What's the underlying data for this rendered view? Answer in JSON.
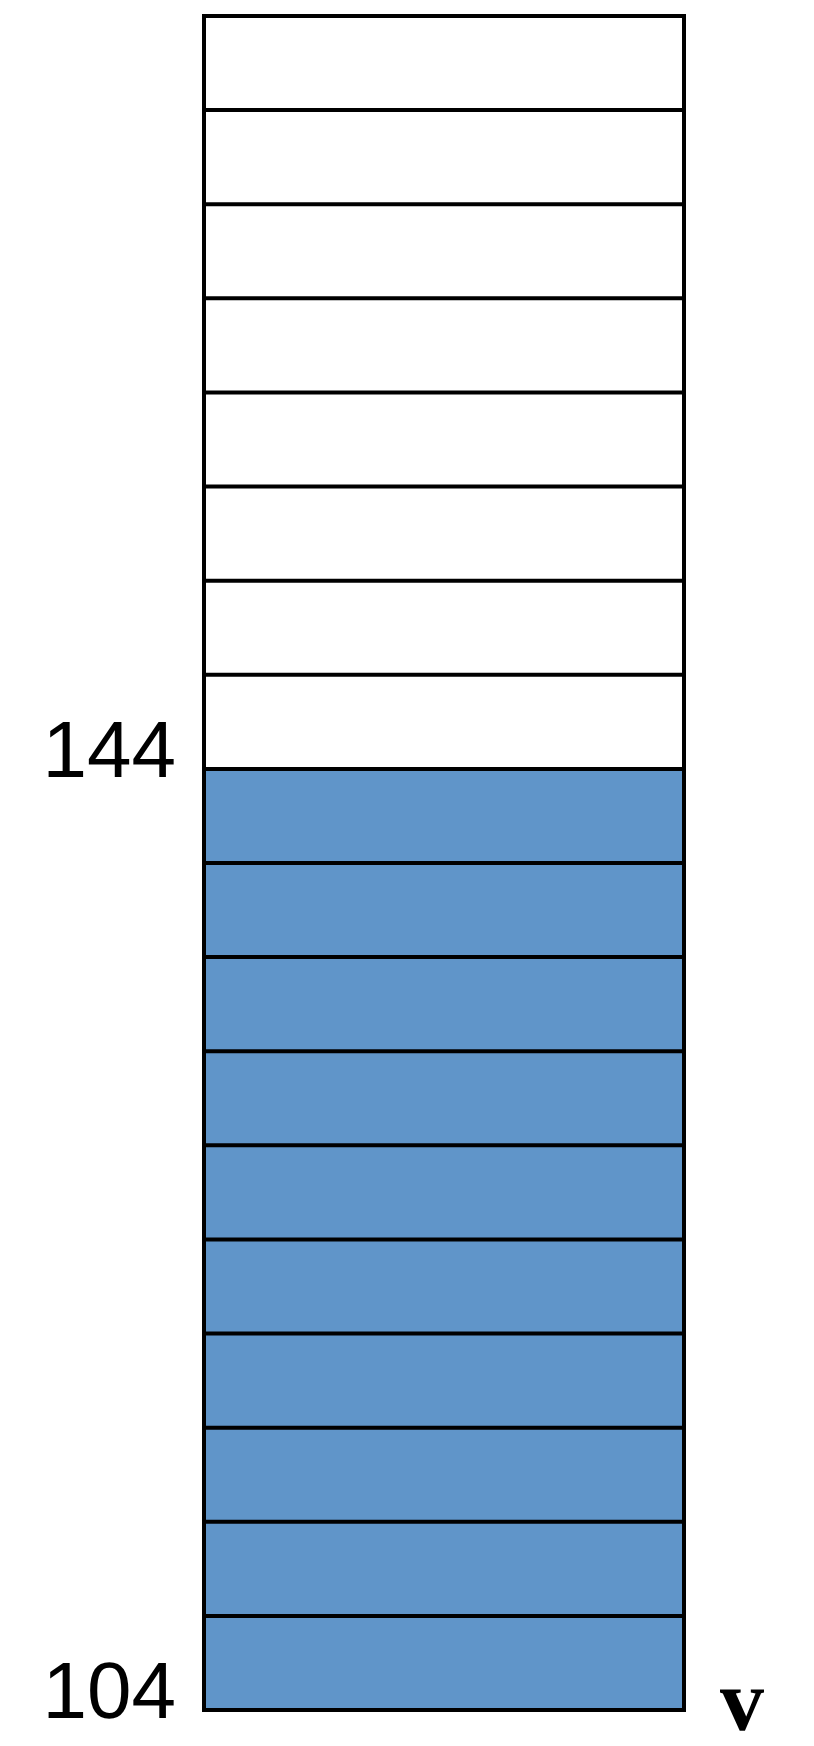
{
  "chart_data": {
    "type": "bar",
    "categories": [
      null
    ],
    "series": [
      {
        "color": "#6095c9",
        "values": [
          144
        ]
      }
    ],
    "ylim": [
      104,
      176
    ],
    "yticks": [
      104,
      {
        "value": 108,
        "label": null
      },
      {
        "value": 112,
        "label": null
      },
      {
        "value": 116,
        "label": null
      },
      {
        "value": 120,
        "label": null
      },
      {
        "value": 124,
        "label": null
      },
      {
        "value": 128,
        "label": null
      },
      {
        "value": 132,
        "label": null
      },
      {
        "value": 136,
        "label": null
      },
      {
        "value": 140,
        "label": null
      },
      144,
      {
        "value": 148,
        "label": null
      },
      {
        "value": 152,
        "label": null
      },
      {
        "value": 156,
        "label": null
      },
      {
        "value": 160,
        "label": null
      },
      {
        "value": 164,
        "label": null
      },
      {
        "value": 168,
        "label": null
      },
      {
        "value": 172,
        "label": null
      },
      {
        "value": 176,
        "label": null
      }
    ],
    "grid": "y",
    "annotations": [
      "v"
    ]
  }
}
